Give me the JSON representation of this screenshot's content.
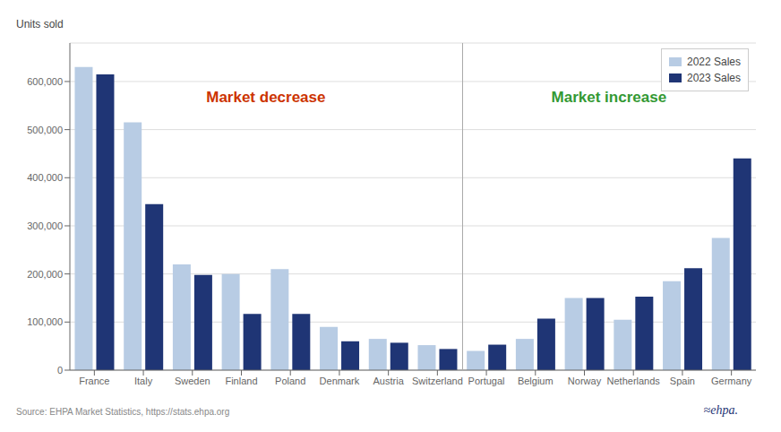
{
  "chart_data": {
    "type": "bar",
    "categories": [
      "France",
      "Italy",
      "Sweden",
      "Finland",
      "Poland",
      "Denmark",
      "Austria",
      "Switzerland",
      "Portugal",
      "Belgium",
      "Norway",
      "Netherlands",
      "Spain",
      "Germany"
    ],
    "series": [
      {
        "name": "2022 Sales",
        "color": "#b8cce4",
        "values": [
          630000,
          515000,
          220000,
          200000,
          210000,
          90000,
          65000,
          52000,
          40000,
          65000,
          150000,
          105000,
          185000,
          275000
        ]
      },
      {
        "name": "2023 Sales",
        "color": "#1f3575",
        "values": [
          615000,
          345000,
          198000,
          117000,
          117000,
          60000,
          57000,
          44000,
          53000,
          107000,
          150000,
          153000,
          212000,
          440000
        ]
      }
    ],
    "ylabel": "Units sold",
    "ylim": [
      0,
      680000
    ],
    "yticks": [
      0,
      {
        "value": 100000,
        "label": "100,000"
      },
      {
        "value": 200000,
        "label": "200,000"
      },
      {
        "value": 300000,
        "label": "300,000"
      },
      {
        "value": 400000,
        "label": "400,000"
      },
      {
        "value": 500000,
        "label": "500,000"
      },
      {
        "value": 600000,
        "label": "600,000"
      }
    ],
    "grid": true,
    "legend": "upper right",
    "annotations": [
      {
        "text": "Market decrease",
        "color": "#cc3300",
        "from": "France",
        "to": "Switzerland"
      },
      {
        "text": "Market increase",
        "color": "#339933",
        "from": "Portugal",
        "to": "Germany"
      }
    ],
    "source": "Source: EHPA Market Statistics, https://stats.ehpa.org",
    "logo": "≈ehpa."
  }
}
